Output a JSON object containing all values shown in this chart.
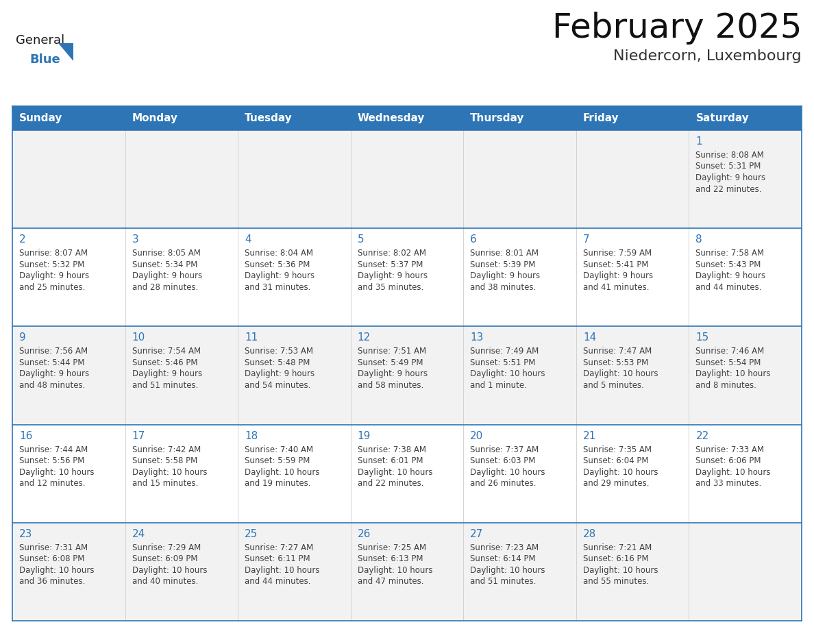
{
  "title": "February 2025",
  "subtitle": "Niedercorn, Luxembourg",
  "header_bg": "#2E75B6",
  "header_text_color": "#FFFFFF",
  "cell_bg_odd": "#F2F2F2",
  "cell_bg_even": "#FFFFFF",
  "cell_border_color": "#2E75B6",
  "day_number_color": "#2E75B6",
  "cell_text_color": "#404040",
  "background_color": "#FFFFFF",
  "days_of_week": [
    "Sunday",
    "Monday",
    "Tuesday",
    "Wednesday",
    "Thursday",
    "Friday",
    "Saturday"
  ],
  "weeks": [
    [
      {
        "day": "",
        "info": ""
      },
      {
        "day": "",
        "info": ""
      },
      {
        "day": "",
        "info": ""
      },
      {
        "day": "",
        "info": ""
      },
      {
        "day": "",
        "info": ""
      },
      {
        "day": "",
        "info": ""
      },
      {
        "day": "1",
        "info": "Sunrise: 8:08 AM\nSunset: 5:31 PM\nDaylight: 9 hours\nand 22 minutes."
      }
    ],
    [
      {
        "day": "2",
        "info": "Sunrise: 8:07 AM\nSunset: 5:32 PM\nDaylight: 9 hours\nand 25 minutes."
      },
      {
        "day": "3",
        "info": "Sunrise: 8:05 AM\nSunset: 5:34 PM\nDaylight: 9 hours\nand 28 minutes."
      },
      {
        "day": "4",
        "info": "Sunrise: 8:04 AM\nSunset: 5:36 PM\nDaylight: 9 hours\nand 31 minutes."
      },
      {
        "day": "5",
        "info": "Sunrise: 8:02 AM\nSunset: 5:37 PM\nDaylight: 9 hours\nand 35 minutes."
      },
      {
        "day": "6",
        "info": "Sunrise: 8:01 AM\nSunset: 5:39 PM\nDaylight: 9 hours\nand 38 minutes."
      },
      {
        "day": "7",
        "info": "Sunrise: 7:59 AM\nSunset: 5:41 PM\nDaylight: 9 hours\nand 41 minutes."
      },
      {
        "day": "8",
        "info": "Sunrise: 7:58 AM\nSunset: 5:43 PM\nDaylight: 9 hours\nand 44 minutes."
      }
    ],
    [
      {
        "day": "9",
        "info": "Sunrise: 7:56 AM\nSunset: 5:44 PM\nDaylight: 9 hours\nand 48 minutes."
      },
      {
        "day": "10",
        "info": "Sunrise: 7:54 AM\nSunset: 5:46 PM\nDaylight: 9 hours\nand 51 minutes."
      },
      {
        "day": "11",
        "info": "Sunrise: 7:53 AM\nSunset: 5:48 PM\nDaylight: 9 hours\nand 54 minutes."
      },
      {
        "day": "12",
        "info": "Sunrise: 7:51 AM\nSunset: 5:49 PM\nDaylight: 9 hours\nand 58 minutes."
      },
      {
        "day": "13",
        "info": "Sunrise: 7:49 AM\nSunset: 5:51 PM\nDaylight: 10 hours\nand 1 minute."
      },
      {
        "day": "14",
        "info": "Sunrise: 7:47 AM\nSunset: 5:53 PM\nDaylight: 10 hours\nand 5 minutes."
      },
      {
        "day": "15",
        "info": "Sunrise: 7:46 AM\nSunset: 5:54 PM\nDaylight: 10 hours\nand 8 minutes."
      }
    ],
    [
      {
        "day": "16",
        "info": "Sunrise: 7:44 AM\nSunset: 5:56 PM\nDaylight: 10 hours\nand 12 minutes."
      },
      {
        "day": "17",
        "info": "Sunrise: 7:42 AM\nSunset: 5:58 PM\nDaylight: 10 hours\nand 15 minutes."
      },
      {
        "day": "18",
        "info": "Sunrise: 7:40 AM\nSunset: 5:59 PM\nDaylight: 10 hours\nand 19 minutes."
      },
      {
        "day": "19",
        "info": "Sunrise: 7:38 AM\nSunset: 6:01 PM\nDaylight: 10 hours\nand 22 minutes."
      },
      {
        "day": "20",
        "info": "Sunrise: 7:37 AM\nSunset: 6:03 PM\nDaylight: 10 hours\nand 26 minutes."
      },
      {
        "day": "21",
        "info": "Sunrise: 7:35 AM\nSunset: 6:04 PM\nDaylight: 10 hours\nand 29 minutes."
      },
      {
        "day": "22",
        "info": "Sunrise: 7:33 AM\nSunset: 6:06 PM\nDaylight: 10 hours\nand 33 minutes."
      }
    ],
    [
      {
        "day": "23",
        "info": "Sunrise: 7:31 AM\nSunset: 6:08 PM\nDaylight: 10 hours\nand 36 minutes."
      },
      {
        "day": "24",
        "info": "Sunrise: 7:29 AM\nSunset: 6:09 PM\nDaylight: 10 hours\nand 40 minutes."
      },
      {
        "day": "25",
        "info": "Sunrise: 7:27 AM\nSunset: 6:11 PM\nDaylight: 10 hours\nand 44 minutes."
      },
      {
        "day": "26",
        "info": "Sunrise: 7:25 AM\nSunset: 6:13 PM\nDaylight: 10 hours\nand 47 minutes."
      },
      {
        "day": "27",
        "info": "Sunrise: 7:23 AM\nSunset: 6:14 PM\nDaylight: 10 hours\nand 51 minutes."
      },
      {
        "day": "28",
        "info": "Sunrise: 7:21 AM\nSunset: 6:16 PM\nDaylight: 10 hours\nand 55 minutes."
      },
      {
        "day": "",
        "info": ""
      }
    ]
  ],
  "logo_text_general": "General",
  "logo_text_blue": "Blue",
  "logo_color_general": "#1A1A1A",
  "logo_color_blue": "#2E75B6",
  "logo_triangle_color": "#2E75B6",
  "title_fontsize": 36,
  "subtitle_fontsize": 16,
  "header_fontsize": 11,
  "day_num_fontsize": 11,
  "info_fontsize": 8.5
}
